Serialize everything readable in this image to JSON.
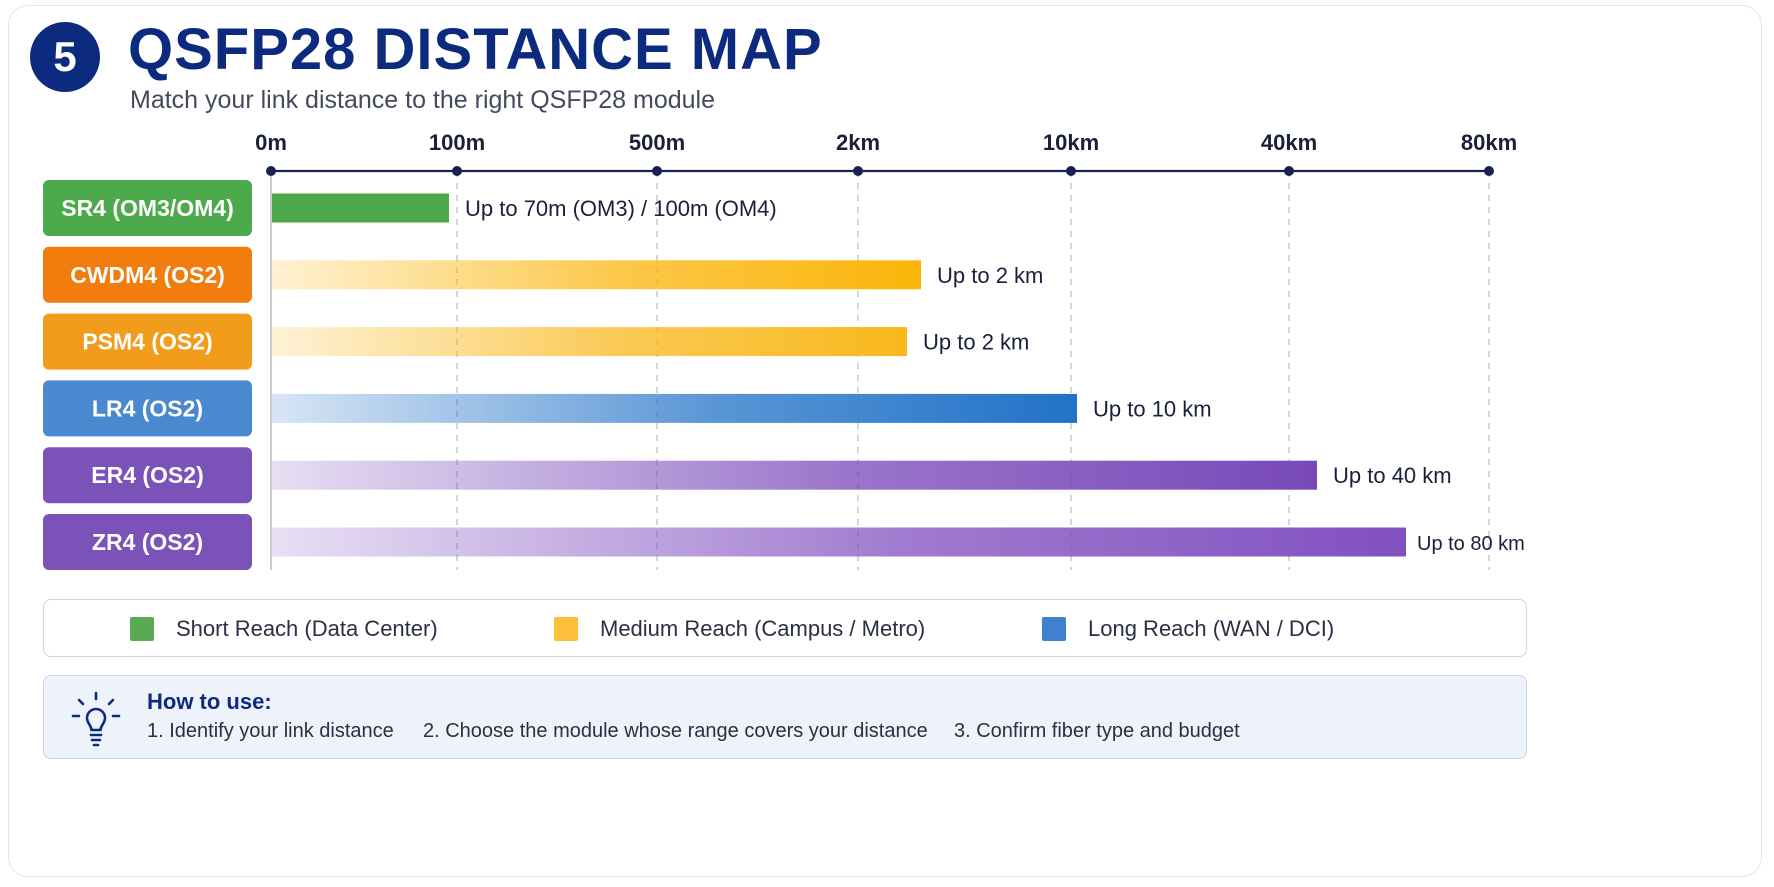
{
  "header": {
    "step_number": "5",
    "title": "QSFP28 DISTANCE MAP",
    "subtitle": "Match your link distance to the right QSFP28 module"
  },
  "chart_data": {
    "type": "bar",
    "orientation": "horizontal",
    "x_axis": {
      "scale": "ordinal-distance",
      "ticks": [
        {
          "label": "0m",
          "meters": 0
        },
        {
          "label": "100m",
          "meters": 100
        },
        {
          "label": "500m",
          "meters": 500
        },
        {
          "label": "2km",
          "meters": 2000
        },
        {
          "label": "10km",
          "meters": 10000
        },
        {
          "label": "40km",
          "meters": 40000
        },
        {
          "label": "80km",
          "meters": 80000
        }
      ]
    },
    "grid": true,
    "categories": [
      "SR4 (OM3/OM4)",
      "CWDM4 (OS2)",
      "PSM4 (OS2)",
      "LR4 (OS2)",
      "ER4 (OS2)",
      "ZR4 (OS2)"
    ],
    "bars": [
      {
        "module": "SR4 (OM3/OM4)",
        "max_distance_m": 100,
        "label": "Up to 70m (OM3) / 100m (OM4)",
        "color": "#4caa4c",
        "badge_color": "#4caa4c",
        "style": "solid"
      },
      {
        "module": "CWDM4 (OS2)",
        "max_distance_m": 2000,
        "label": "Up to 2 km",
        "color": "#fbb50a",
        "badge_color": "#f07d0d",
        "style": "gradient"
      },
      {
        "module": "PSM4 (OS2)",
        "max_distance_m": 2000,
        "label": "Up to 2 km",
        "color": "#f9b81c",
        "badge_color": "#f29c1c",
        "style": "gradient"
      },
      {
        "module": "LR4 (OS2)",
        "max_distance_m": 10000,
        "label": "Up to 10 km",
        "color": "#2272c8",
        "badge_color": "#4a88cf",
        "style": "gradient"
      },
      {
        "module": "ER4 (OS2)",
        "max_distance_m": 40000,
        "label": "Up to 40 km",
        "color": "#7848b9",
        "badge_color": "#7a52b8",
        "style": "gradient"
      },
      {
        "module": "ZR4 (OS2)",
        "max_distance_m": 80000,
        "label": "Up to 80 km",
        "color": "#8150c0",
        "badge_color": "#7a52b8",
        "style": "gradient"
      }
    ]
  },
  "legend": {
    "items": [
      {
        "label": "Short Reach (Data Center)",
        "color": "#5aaa55"
      },
      {
        "label": "Medium Reach (Campus / Metro)",
        "color": "#fcc03a"
      },
      {
        "label": "Long Reach (WAN / DCI)",
        "color": "#3f80cf"
      }
    ]
  },
  "how_to": {
    "icon": "lightbulb-icon",
    "title": "How to use:",
    "steps": [
      "1. Identify your link distance",
      "2. Choose the module whose range covers your distance",
      "3. Confirm fiber type and budget"
    ]
  }
}
